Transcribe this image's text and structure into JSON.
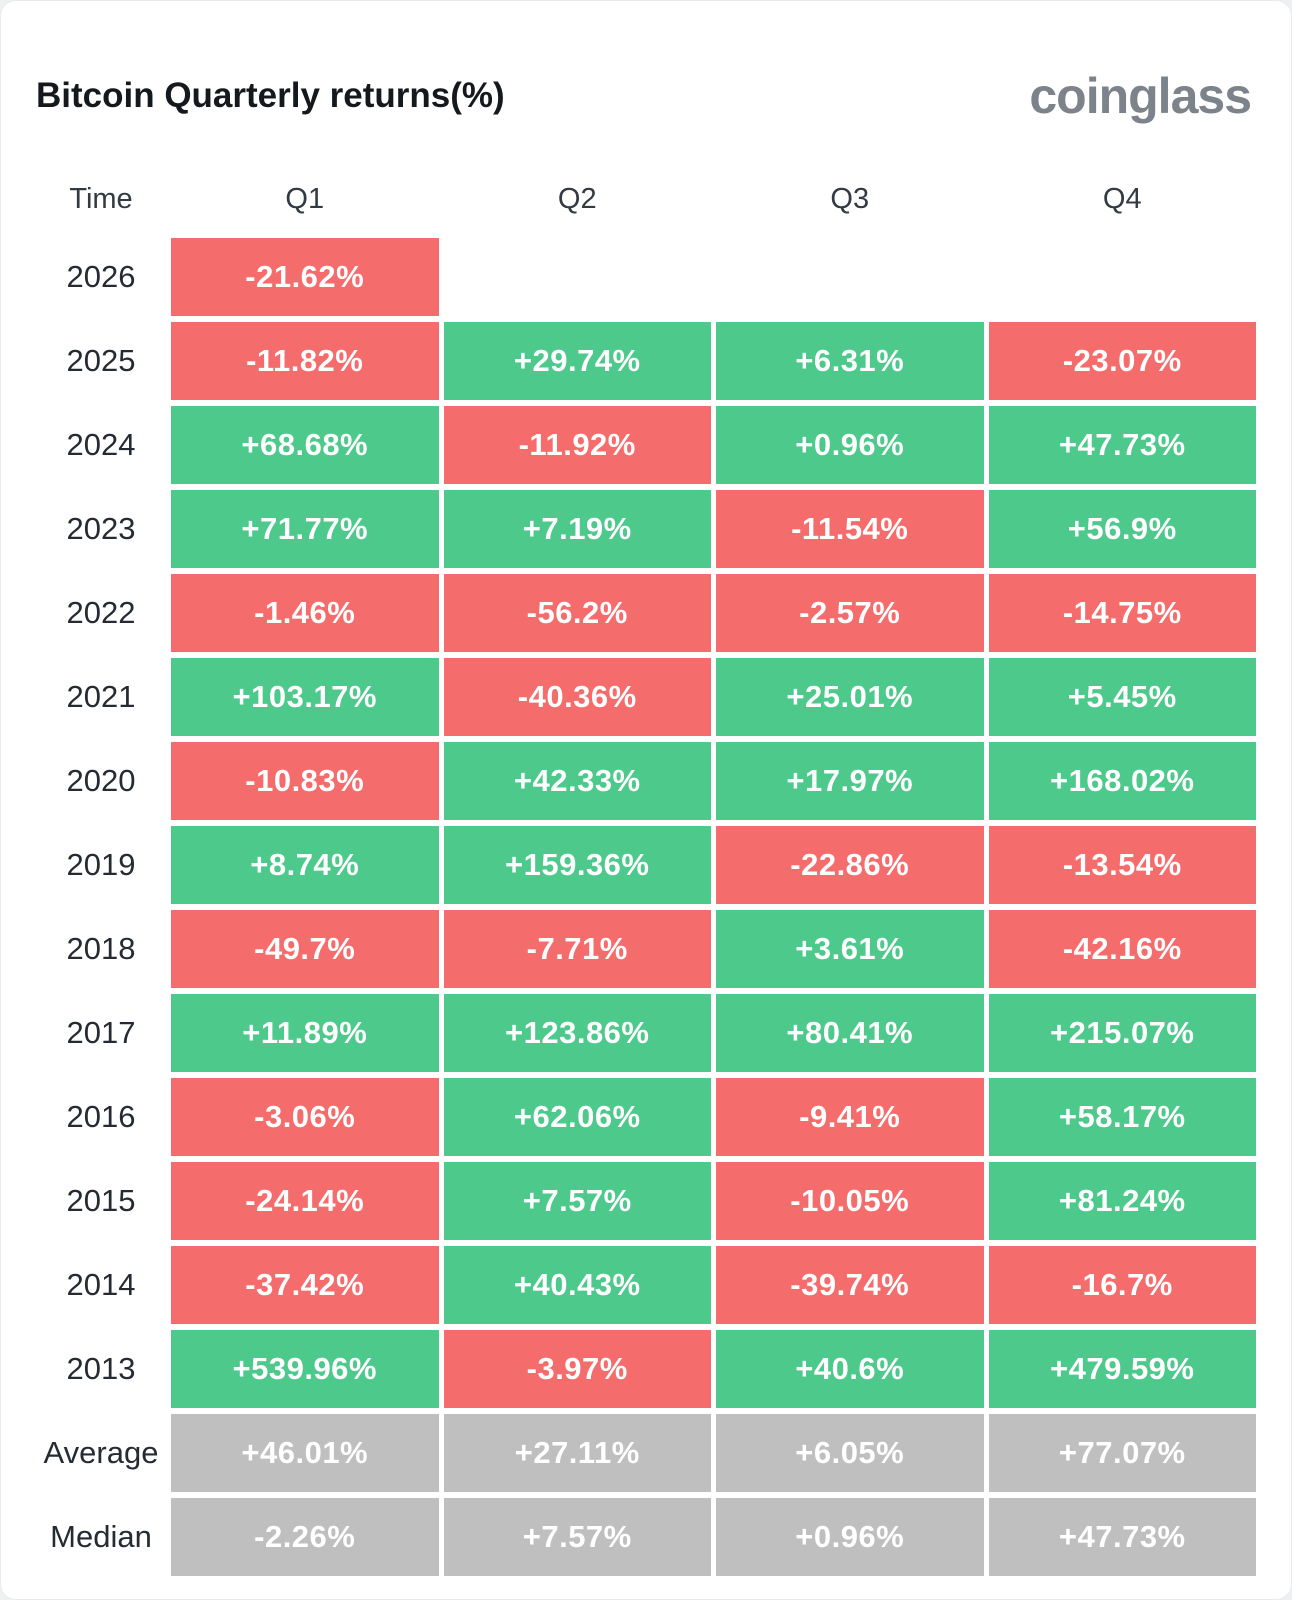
{
  "header": {
    "title": "Bitcoin Quarterly returns(%)",
    "logo": "coinglass"
  },
  "colors": {
    "positive": "#4dc98c",
    "negative": "#f56c6c",
    "neutral": "#bfbfbf",
    "card_background": "#ffffff",
    "page_background": "#eef0f2"
  },
  "chart_data": {
    "type": "heatmap",
    "title": "Bitcoin Quarterly returns(%)",
    "columns": [
      "Time",
      "Q1",
      "Q2",
      "Q3",
      "Q4"
    ],
    "color_rule": "negative values red, positive green, summary rows gray",
    "rows": [
      {
        "label": "2026",
        "values": [
          "-21.62%",
          null,
          null,
          null
        ],
        "neutral": false
      },
      {
        "label": "2025",
        "values": [
          "-11.82%",
          "+29.74%",
          "+6.31%",
          "-23.07%"
        ],
        "neutral": false
      },
      {
        "label": "2024",
        "values": [
          "+68.68%",
          "-11.92%",
          "+0.96%",
          "+47.73%"
        ],
        "neutral": false
      },
      {
        "label": "2023",
        "values": [
          "+71.77%",
          "+7.19%",
          "-11.54%",
          "+56.9%"
        ],
        "neutral": false
      },
      {
        "label": "2022",
        "values": [
          "-1.46%",
          "-56.2%",
          "-2.57%",
          "-14.75%"
        ],
        "neutral": false
      },
      {
        "label": "2021",
        "values": [
          "+103.17%",
          "-40.36%",
          "+25.01%",
          "+5.45%"
        ],
        "neutral": false
      },
      {
        "label": "2020",
        "values": [
          "-10.83%",
          "+42.33%",
          "+17.97%",
          "+168.02%"
        ],
        "neutral": false
      },
      {
        "label": "2019",
        "values": [
          "+8.74%",
          "+159.36%",
          "-22.86%",
          "-13.54%"
        ],
        "neutral": false
      },
      {
        "label": "2018",
        "values": [
          "-49.7%",
          "-7.71%",
          "+3.61%",
          "-42.16%"
        ],
        "neutral": false
      },
      {
        "label": "2017",
        "values": [
          "+11.89%",
          "+123.86%",
          "+80.41%",
          "+215.07%"
        ],
        "neutral": false
      },
      {
        "label": "2016",
        "values": [
          "-3.06%",
          "+62.06%",
          "-9.41%",
          "+58.17%"
        ],
        "neutral": false
      },
      {
        "label": "2015",
        "values": [
          "-24.14%",
          "+7.57%",
          "-10.05%",
          "+81.24%"
        ],
        "neutral": false
      },
      {
        "label": "2014",
        "values": [
          "-37.42%",
          "+40.43%",
          "-39.74%",
          "-16.7%"
        ],
        "neutral": false
      },
      {
        "label": "2013",
        "values": [
          "+539.96%",
          "-3.97%",
          "+40.6%",
          "+479.59%"
        ],
        "neutral": false
      },
      {
        "label": "Average",
        "values": [
          "+46.01%",
          "+27.11%",
          "+6.05%",
          "+77.07%"
        ],
        "neutral": true
      },
      {
        "label": "Median",
        "values": [
          "-2.26%",
          "+7.57%",
          "+0.96%",
          "+47.73%"
        ],
        "neutral": true
      }
    ]
  }
}
